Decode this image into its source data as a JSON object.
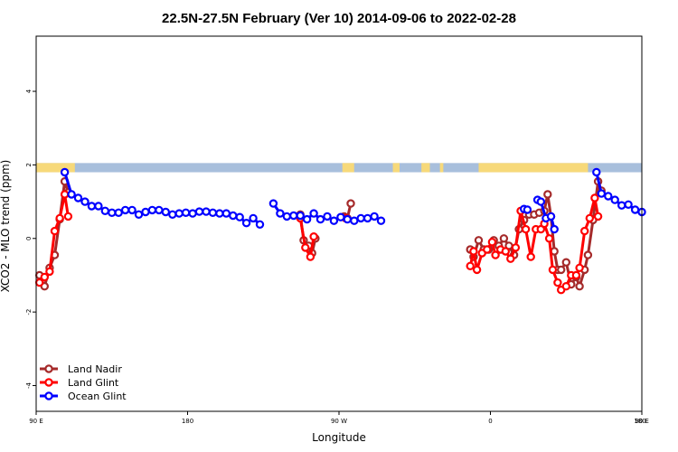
{
  "chart_data": {
    "type": "line",
    "title": "22.5N-27.5N February (Ver 10)   2014-09-06 to 2022-02-28",
    "xlabel": "Longitude",
    "ylabel": "XCO2 - MLO trend (ppm)",
    "xlim": [
      90,
      450
    ],
    "ylim": [
      -4.7,
      5.5
    ],
    "x_ticks": [
      {
        "value": 90,
        "label": "90 E"
      },
      {
        "value": 180,
        "label": "180"
      },
      {
        "value": 270,
        "label": "90 W"
      },
      {
        "value": 360,
        "label": "0"
      },
      {
        "value": 450,
        "label": "90 E"
      }
    ],
    "x_ticks_upper": [
      {
        "value": 450,
        "label": "180"
      }
    ],
    "y_ticks": [
      {
        "value": -4,
        "label": "-4"
      },
      {
        "value": -2,
        "label": "-2"
      },
      {
        "value": 0,
        "label": "0"
      },
      {
        "value": 2,
        "label": "2"
      },
      {
        "value": 4,
        "label": "4"
      }
    ],
    "land_ocean_strip": {
      "ymin": 1.8,
      "ymax": 2.05,
      "ocean_color": "#a8bfdc",
      "land_color": "#f7d97a",
      "land_x": [
        [
          90,
          113
        ],
        [
          272,
          279
        ],
        [
          302,
          306
        ],
        [
          319,
          324
        ],
        [
          353,
          418
        ],
        [
          330,
          332
        ]
      ]
    },
    "legend": {
      "position": "bottom-left"
    },
    "series": [
      {
        "name": "Land Nadir",
        "color": "#a52a2a",
        "segments": [
          [
            [
              92,
              -1.0
            ],
            [
              95,
              -1.3
            ],
            [
              98,
              -0.8
            ],
            [
              101,
              -0.45
            ],
            [
              104,
              0.52
            ],
            [
              107,
              1.55
            ],
            [
              109,
              1.25
            ]
          ],
          [
            [
              247,
              0.65
            ],
            [
              249,
              -0.05
            ],
            [
              252,
              -0.2
            ],
            [
              254,
              -0.4
            ],
            [
              256,
              0.0
            ]
          ],
          [
            [
              273,
              0.6
            ],
            [
              275,
              0.55
            ],
            [
              277,
              0.95
            ]
          ],
          [
            [
              348,
              -0.3
            ],
            [
              350,
              -0.5
            ],
            [
              353,
              -0.05
            ],
            [
              356,
              -0.3
            ],
            [
              359,
              -0.3
            ],
            [
              362,
              -0.05
            ],
            [
              365,
              -0.2
            ],
            [
              368,
              0.0
            ],
            [
              371,
              -0.2
            ],
            [
              374,
              -0.45
            ],
            [
              377,
              0.25
            ],
            [
              380,
              0.5
            ],
            [
              383,
              0.65
            ],
            [
              386,
              0.65
            ],
            [
              389,
              0.7
            ],
            [
              392,
              0.75
            ],
            [
              394,
              1.2
            ],
            [
              396,
              0.6
            ],
            [
              398,
              -0.35
            ],
            [
              400,
              -0.85
            ],
            [
              402,
              -0.85
            ],
            [
              405,
              -0.65
            ],
            [
              408,
              -1.25
            ],
            [
              411,
              -1.05
            ],
            [
              413,
              -1.3
            ],
            [
              416,
              -0.85
            ],
            [
              418,
              -0.45
            ],
            [
              421,
              0.5
            ],
            [
              424,
              1.55
            ],
            [
              426,
              1.3
            ]
          ]
        ]
      },
      {
        "name": "Land Glint",
        "color": "#ff0000",
        "segments": [
          [
            [
              92,
              -1.2
            ],
            [
              95,
              -1.05
            ],
            [
              98,
              -0.9
            ],
            [
              101,
              0.2
            ],
            [
              104,
              0.55
            ],
            [
              107,
              1.2
            ],
            [
              109,
              0.6
            ]
          ],
          [
            [
              247,
              0.55
            ],
            [
              250,
              -0.25
            ],
            [
              253,
              -0.5
            ],
            [
              255,
              0.05
            ]
          ],
          [
            [
              274,
              0.55
            ]
          ],
          [
            [
              348,
              -0.75
            ],
            [
              350,
              -0.35
            ],
            [
              352,
              -0.85
            ],
            [
              355,
              -0.4
            ],
            [
              358,
              -0.3
            ],
            [
              361,
              -0.1
            ],
            [
              363,
              -0.45
            ],
            [
              366,
              -0.3
            ],
            [
              369,
              -0.35
            ],
            [
              372,
              -0.55
            ],
            [
              375,
              -0.25
            ],
            [
              378,
              0.75
            ],
            [
              381,
              0.25
            ],
            [
              384,
              -0.5
            ],
            [
              387,
              0.25
            ],
            [
              390,
              0.25
            ],
            [
              392,
              0.4
            ],
            [
              395,
              0.0
            ],
            [
              397,
              -0.85
            ],
            [
              400,
              -1.2
            ],
            [
              402,
              -1.4
            ],
            [
              405,
              -1.3
            ],
            [
              408,
              -1.0
            ],
            [
              411,
              -1.0
            ],
            [
              413,
              -0.8
            ],
            [
              416,
              0.2
            ],
            [
              419,
              0.55
            ],
            [
              422,
              1.1
            ],
            [
              424,
              0.6
            ]
          ]
        ]
      },
      {
        "name": "Ocean Glint",
        "color": "#0000ff",
        "segments": [
          [
            [
              107,
              1.8
            ],
            [
              111,
              1.2
            ],
            [
              115,
              1.1
            ],
            [
              119,
              1.0
            ],
            [
              123,
              0.88
            ],
            [
              127,
              0.88
            ],
            [
              131,
              0.75
            ],
            [
              135,
              0.7
            ],
            [
              139,
              0.7
            ],
            [
              143,
              0.77
            ],
            [
              147,
              0.77
            ],
            [
              151,
              0.65
            ],
            [
              155,
              0.72
            ],
            [
              159,
              0.77
            ],
            [
              163,
              0.77
            ],
            [
              167,
              0.72
            ],
            [
              171,
              0.65
            ],
            [
              175,
              0.68
            ],
            [
              179,
              0.7
            ],
            [
              183,
              0.68
            ],
            [
              187,
              0.73
            ],
            [
              191,
              0.73
            ],
            [
              195,
              0.7
            ],
            [
              199,
              0.68
            ],
            [
              203,
              0.68
            ],
            [
              207,
              0.62
            ],
            [
              211,
              0.58
            ],
            [
              215,
              0.42
            ],
            [
              219,
              0.55
            ],
            [
              223,
              0.38
            ]
          ],
          [
            [
              231,
              0.95
            ],
            [
              235,
              0.68
            ],
            [
              239,
              0.6
            ],
            [
              243,
              0.62
            ],
            [
              247,
              0.62
            ],
            [
              251,
              0.52
            ],
            [
              255,
              0.68
            ],
            [
              259,
              0.52
            ],
            [
              263,
              0.6
            ],
            [
              267,
              0.48
            ],
            [
              271,
              0.58
            ],
            [
              275,
              0.52
            ],
            [
              279,
              0.48
            ],
            [
              283,
              0.55
            ],
            [
              287,
              0.55
            ],
            [
              291,
              0.6
            ],
            [
              295,
              0.48
            ]
          ],
          [
            [
              380,
              0.8
            ],
            [
              382,
              0.78
            ]
          ],
          [
            [
              388,
              1.05
            ],
            [
              390,
              1.0
            ],
            [
              393,
              0.55
            ],
            [
              396,
              0.6
            ],
            [
              398,
              0.25
            ]
          ],
          [
            [
              423,
              1.8
            ],
            [
              426,
              1.22
            ],
            [
              430,
              1.15
            ],
            [
              434,
              1.05
            ],
            [
              438,
              0.9
            ],
            [
              442,
              0.92
            ],
            [
              446,
              0.78
            ],
            [
              450,
              0.72
            ]
          ]
        ]
      }
    ]
  }
}
